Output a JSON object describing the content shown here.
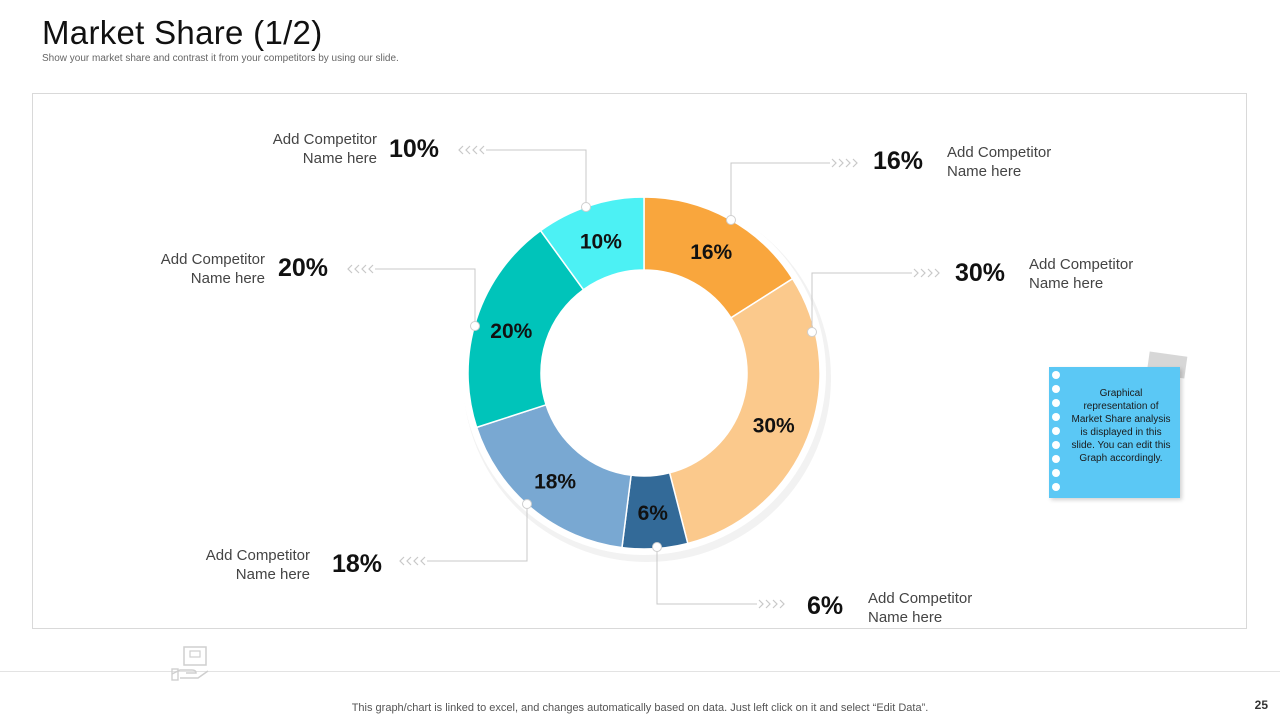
{
  "header": {
    "title": "Market Share (1/2)",
    "subtitle": "Show your market share and contrast it from your competitors by using our slide."
  },
  "chart_data": {
    "type": "pie",
    "title": "",
    "categories": [
      "Add Competitor Name here",
      "Add Competitor Name here",
      "Add Competitor Name here",
      "Add Competitor Name here",
      "Add Competitor Name here",
      "Add Competitor Name here"
    ],
    "values": [
      16,
      30,
      6,
      18,
      20,
      10
    ],
    "value_labels": [
      "16%",
      "30%",
      "6%",
      "18%",
      "20%",
      "10%"
    ],
    "colors": [
      "#f9a63d",
      "#fbc98c",
      "#336a98",
      "#79a8d2",
      "#00c4ba",
      "#4cf1f4"
    ],
    "donut": true,
    "legend": "none"
  },
  "callouts": [
    {
      "pct": "16%",
      "name_line1": "Add Competitor",
      "name_line2": "Name here"
    },
    {
      "pct": "30%",
      "name_line1": "Add Competitor",
      "name_line2": "Name here"
    },
    {
      "pct": "6%",
      "name_line1": "Add Competitor",
      "name_line2": "Name here"
    },
    {
      "pct": "18%",
      "name_line1": "Add Competitor",
      "name_line2": "Name here"
    },
    {
      "pct": "20%",
      "name_line1": "Add Competitor",
      "name_line2": "Name here"
    },
    {
      "pct": "10%",
      "name_line1": "Add Competitor",
      "name_line2": "Name here"
    }
  ],
  "note": {
    "text": "Graphical representation of Market Share analysis is displayed in this slide. You can edit this Graph accordingly."
  },
  "footer": {
    "text": "This graph/chart is linked to excel,  and changes automatically based on data. Just left click on it and select “Edit Data”.",
    "page_number": "25",
    "icon": "hand-box-icon"
  }
}
